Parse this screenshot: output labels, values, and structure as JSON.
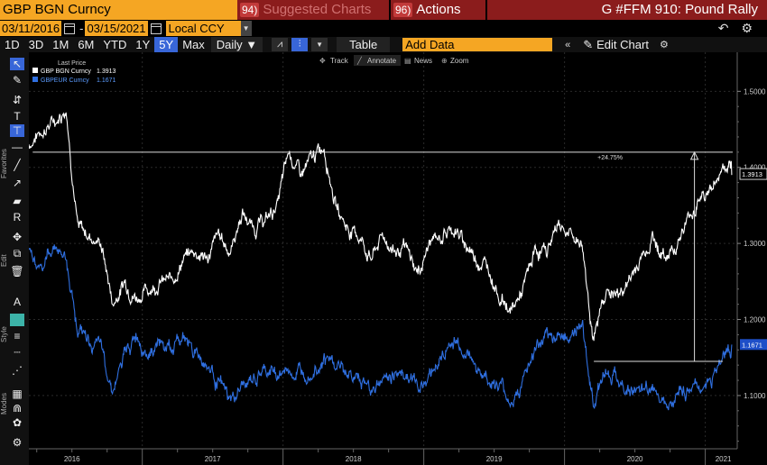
{
  "topbar": {
    "ticker": "GBP BGN Curncy",
    "suggested_num": "94)",
    "suggested_label": "Suggested Charts",
    "actions_num": "96)",
    "actions_label": "Actions",
    "title": "G #FFM 910: Pound Rally"
  },
  "datebar": {
    "start_date": "03/11/2016",
    "dash": "-",
    "end_date": "03/15/2021",
    "currency": "Local CCY"
  },
  "rangebar": {
    "ranges": [
      "1D",
      "3D",
      "1M",
      "6M",
      "YTD",
      "1Y",
      "5Y",
      "Max"
    ],
    "selected": "5Y",
    "frequency": "Daily",
    "table_label": "Table",
    "add_data_placeholder": "Add Data",
    "edit_chart_label": "Edit Chart"
  },
  "chart_toolbar": {
    "track": "Track",
    "annotate": "Annotate",
    "news": "News",
    "zoom": "Zoom"
  },
  "side_labels": {
    "favorites": "Favorites",
    "edit": "Edit",
    "style": "Style",
    "modes": "Modes"
  },
  "colors": {
    "accent_orange": "#f5a623",
    "selected_blue": "#3866d8",
    "series_white": "#ffffff",
    "series_blue": "#2f6fe0",
    "header_red": "#8b1c1c"
  },
  "chart_data": {
    "type": "line",
    "title": "",
    "legend_title": "Last Price",
    "legend_placement": "top-left",
    "x_ticks": [
      "2016",
      "2017",
      "2018",
      "2019",
      "2020",
      "2021"
    ],
    "y_ticks": [
      "1.5000",
      "1.4000",
      "1.3000",
      "1.2000",
      "1.1000"
    ],
    "ylim": [
      1.03,
      1.53
    ],
    "series": [
      {
        "name": "GBP BGN Curncy",
        "last": "1.3913",
        "color": "#ffffff",
        "points": [
          [
            "2016-03",
            1.43
          ],
          [
            "2016-04",
            1.45
          ],
          [
            "2016-05",
            1.46
          ],
          [
            "2016-06",
            1.48
          ],
          [
            "2016-07",
            1.32
          ],
          [
            "2016-08",
            1.31
          ],
          [
            "2016-09",
            1.3
          ],
          [
            "2016-10",
            1.22
          ],
          [
            "2016-11",
            1.25
          ],
          [
            "2016-12",
            1.23
          ],
          [
            "2017-01",
            1.24
          ],
          [
            "2017-02",
            1.25
          ],
          [
            "2017-03",
            1.25
          ],
          [
            "2017-04",
            1.28
          ],
          [
            "2017-05",
            1.29
          ],
          [
            "2017-06",
            1.28
          ],
          [
            "2017-07",
            1.31
          ],
          [
            "2017-08",
            1.29
          ],
          [
            "2017-09",
            1.34
          ],
          [
            "2017-10",
            1.32
          ],
          [
            "2017-11",
            1.33
          ],
          [
            "2017-12",
            1.35
          ],
          [
            "2018-01",
            1.42
          ],
          [
            "2018-02",
            1.39
          ],
          [
            "2018-03",
            1.41
          ],
          [
            "2018-04",
            1.43
          ],
          [
            "2018-05",
            1.35
          ],
          [
            "2018-06",
            1.32
          ],
          [
            "2018-07",
            1.31
          ],
          [
            "2018-08",
            1.28
          ],
          [
            "2018-09",
            1.31
          ],
          [
            "2018-10",
            1.29
          ],
          [
            "2018-11",
            1.29
          ],
          [
            "2018-12",
            1.26
          ],
          [
            "2019-01",
            1.3
          ],
          [
            "2019-02",
            1.31
          ],
          [
            "2019-03",
            1.32
          ],
          [
            "2019-04",
            1.3
          ],
          [
            "2019-05",
            1.28
          ],
          [
            "2019-06",
            1.27
          ],
          [
            "2019-07",
            1.23
          ],
          [
            "2019-08",
            1.21
          ],
          [
            "2019-09",
            1.24
          ],
          [
            "2019-10",
            1.29
          ],
          [
            "2019-11",
            1.29
          ],
          [
            "2019-12",
            1.33
          ],
          [
            "2020-01",
            1.31
          ],
          [
            "2020-02",
            1.3
          ],
          [
            "2020-03",
            1.17
          ],
          [
            "2020-04",
            1.24
          ],
          [
            "2020-05",
            1.23
          ],
          [
            "2020-06",
            1.25
          ],
          [
            "2020-07",
            1.28
          ],
          [
            "2020-08",
            1.31
          ],
          [
            "2020-09",
            1.28
          ],
          [
            "2020-10",
            1.3
          ],
          [
            "2020-11",
            1.33
          ],
          [
            "2020-12",
            1.36
          ],
          [
            "2021-01",
            1.37
          ],
          [
            "2021-02",
            1.4
          ],
          [
            "2021-03",
            1.39
          ]
        ]
      },
      {
        "name": "GBPEUR Curncy",
        "last": "1.1671",
        "color": "#2f6fe0",
        "points": [
          [
            "2016-03",
            1.29
          ],
          [
            "2016-04",
            1.27
          ],
          [
            "2016-05",
            1.3
          ],
          [
            "2016-06",
            1.28
          ],
          [
            "2016-07",
            1.19
          ],
          [
            "2016-08",
            1.17
          ],
          [
            "2016-09",
            1.16
          ],
          [
            "2016-10",
            1.11
          ],
          [
            "2016-11",
            1.15
          ],
          [
            "2016-12",
            1.18
          ],
          [
            "2017-01",
            1.16
          ],
          [
            "2017-02",
            1.17
          ],
          [
            "2017-03",
            1.16
          ],
          [
            "2017-04",
            1.18
          ],
          [
            "2017-05",
            1.16
          ],
          [
            "2017-06",
            1.14
          ],
          [
            "2017-07",
            1.12
          ],
          [
            "2017-08",
            1.09
          ],
          [
            "2017-09",
            1.11
          ],
          [
            "2017-10",
            1.12
          ],
          [
            "2017-11",
            1.13
          ],
          [
            "2017-12",
            1.13
          ],
          [
            "2018-01",
            1.13
          ],
          [
            "2018-02",
            1.13
          ],
          [
            "2018-03",
            1.14
          ],
          [
            "2018-04",
            1.15
          ],
          [
            "2018-05",
            1.14
          ],
          [
            "2018-06",
            1.13
          ],
          [
            "2018-07",
            1.12
          ],
          [
            "2018-08",
            1.11
          ],
          [
            "2018-09",
            1.12
          ],
          [
            "2018-10",
            1.13
          ],
          [
            "2018-11",
            1.13
          ],
          [
            "2018-12",
            1.11
          ],
          [
            "2019-01",
            1.13
          ],
          [
            "2019-02",
            1.15
          ],
          [
            "2019-03",
            1.17
          ],
          [
            "2019-04",
            1.16
          ],
          [
            "2019-05",
            1.14
          ],
          [
            "2019-06",
            1.12
          ],
          [
            "2019-07",
            1.11
          ],
          [
            "2019-08",
            1.09
          ],
          [
            "2019-09",
            1.12
          ],
          [
            "2019-10",
            1.16
          ],
          [
            "2019-11",
            1.17
          ],
          [
            "2019-12",
            1.18
          ],
          [
            "2020-01",
            1.18
          ],
          [
            "2020-02",
            1.19
          ],
          [
            "2020-03",
            1.09
          ],
          [
            "2020-04",
            1.14
          ],
          [
            "2020-05",
            1.12
          ],
          [
            "2020-06",
            1.11
          ],
          [
            "2020-07",
            1.1
          ],
          [
            "2020-08",
            1.11
          ],
          [
            "2020-09",
            1.1
          ],
          [
            "2020-10",
            1.1
          ],
          [
            "2020-11",
            1.11
          ],
          [
            "2020-12",
            1.11
          ],
          [
            "2021-01",
            1.12
          ],
          [
            "2021-02",
            1.15
          ],
          [
            "2021-03",
            1.167
          ]
        ]
      }
    ],
    "annotation": {
      "label": "+24.75%",
      "from": [
        "2020-03",
        1.145
      ],
      "to": [
        "2021-02",
        1.42
      ]
    }
  }
}
